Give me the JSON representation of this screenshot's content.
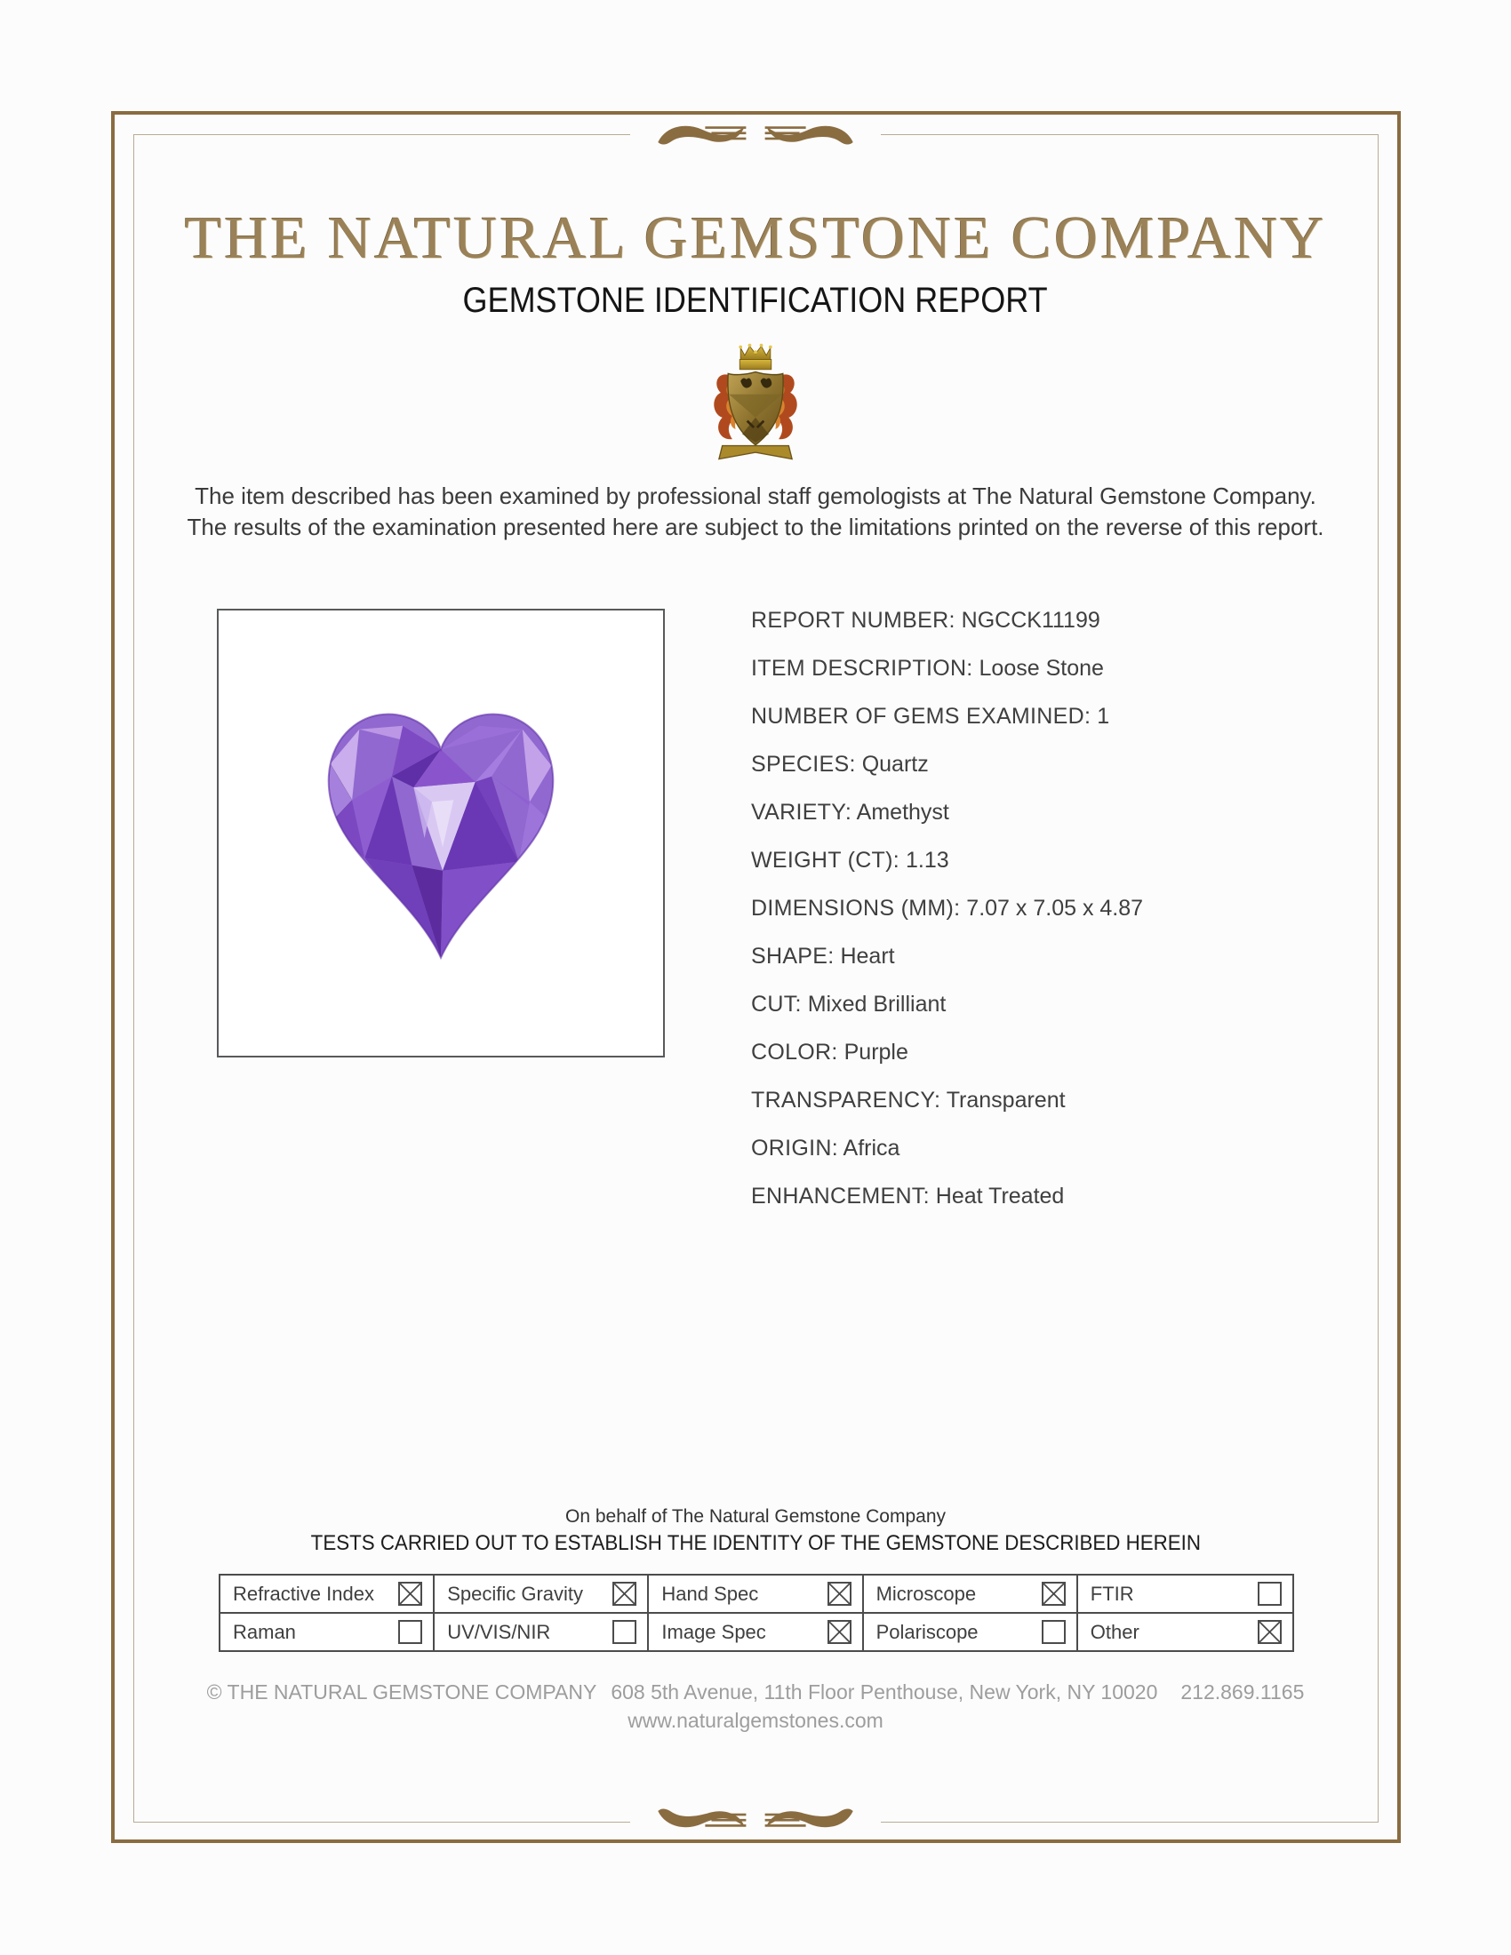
{
  "header": {
    "company_title": "THE NATURAL GEMSTONE COMPANY",
    "report_title": "GEMSTONE IDENTIFICATION REPORT"
  },
  "intro": {
    "line1": "The item described has been examined by professional staff gemologists at The Natural Gemstone Company.",
    "line2": "The results of the examination presented here are subject to the limitations printed on the reverse of this report."
  },
  "details": {
    "items": [
      {
        "label": "REPORT NUMBER:",
        "value": "NGCCK11199"
      },
      {
        "label": "ITEM DESCRIPTION:",
        "value": "Loose Stone"
      },
      {
        "label": "NUMBER OF GEMS EXAMINED:",
        "value": "1"
      },
      {
        "label": "SPECIES:",
        "value": "Quartz"
      },
      {
        "label": "VARIETY:",
        "value": "Amethyst"
      },
      {
        "label": "WEIGHT (CT):",
        "value": "1.13"
      },
      {
        "label": "DIMENSIONS (MM):",
        "value": "7.07 x 7.05 x 4.87"
      },
      {
        "label": "SHAPE:",
        "value": "Heart"
      },
      {
        "label": "CUT:",
        "value": "Mixed Brilliant"
      },
      {
        "label": "COLOR:",
        "value": "Purple"
      },
      {
        "label": "TRANSPARENCY:",
        "value": "Transparent"
      },
      {
        "label": "ORIGIN:",
        "value": "Africa"
      },
      {
        "label": "ENHANCEMENT:",
        "value": "Heat Treated"
      }
    ]
  },
  "tests": {
    "on_behalf": "On behalf of The Natural Gemstone Company",
    "heading": "TESTS CARRIED OUT TO ESTABLISH THE IDENTITY OF THE GEMSTONE DESCRIBED HEREIN",
    "items": [
      {
        "label": "Refractive Index",
        "checked": true
      },
      {
        "label": "Specific Gravity",
        "checked": true
      },
      {
        "label": "Hand Spec",
        "checked": true
      },
      {
        "label": "Microscope",
        "checked": true
      },
      {
        "label": "FTIR",
        "checked": false
      },
      {
        "label": "Raman",
        "checked": false
      },
      {
        "label": "UV/VIS/NIR",
        "checked": false
      },
      {
        "label": "Image Spec",
        "checked": true
      },
      {
        "label": "Polariscope",
        "checked": false
      },
      {
        "label": "Other",
        "checked": true
      }
    ]
  },
  "footer": {
    "company": "© THE NATURAL GEMSTONE COMPANY",
    "address": "608 5th Avenue, 11th Floor Penthouse, New York, NY 10020",
    "phone": "212.869.1165",
    "website": "www.naturalgemstones.com"
  },
  "icons": {
    "crest": "heraldic-crest-logo",
    "divider": "swirl-divider-ornament",
    "photo": "heart-cut-amethyst-photo",
    "checked_box": "checkbox-checked-icon",
    "unchecked_box": "checkbox-unchecked-icon"
  },
  "colors": {
    "border_brown": "#8a6c41",
    "inner_line_tan": "#b9ab94",
    "title_gold": "#9a8157",
    "text_dark": "#3f3f3f",
    "footer_gray": "#9d9d9d",
    "gem_purple": "#8b5fc8"
  }
}
